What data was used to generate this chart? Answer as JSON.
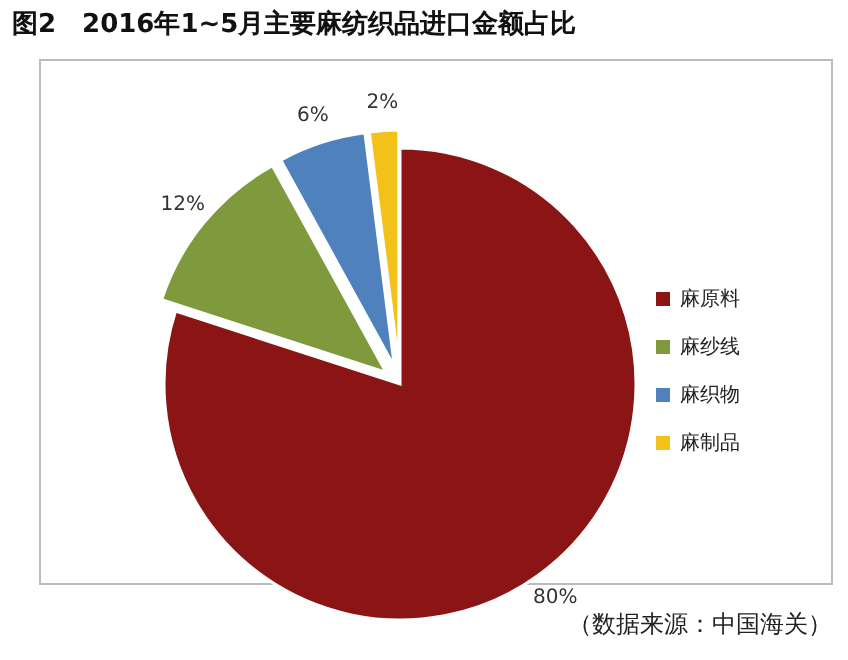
{
  "chart_data": {
    "type": "pie",
    "title": "图2　2016年1~5月主要麻纺织品进口金额占比",
    "categories": [
      "麻原料",
      "麻纱线",
      "麻织物",
      "麻制品"
    ],
    "values": [
      80,
      12,
      6,
      2
    ],
    "value_labels": [
      "80%",
      "12%",
      "6%",
      "2%"
    ],
    "colors": [
      "#8b1515",
      "#7f9a3c",
      "#4f81bd",
      "#f2c21a"
    ],
    "legend": "right",
    "annotations": [
      "（数据来源：中国海关）"
    ]
  }
}
